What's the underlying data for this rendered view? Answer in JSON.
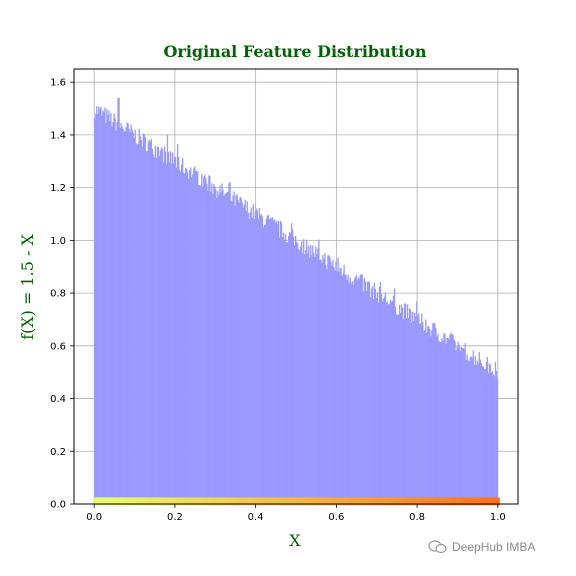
{
  "colors": {
    "hist": "#9999ff",
    "title": "#006400",
    "grid": "#b0b0b0",
    "rug_start": "#e8ff70",
    "rug_end": "#ff7010"
  },
  "chart_data": {
    "type": "bar",
    "title": "Original Feature Distribution",
    "xlabel": "X",
    "ylabel": "f(X) = 1.5 - X",
    "xlim": [
      -0.05,
      1.05
    ],
    "ylim": [
      0.0,
      1.65
    ],
    "xticks": [
      "0.0",
      "0.2",
      "0.4",
      "0.6",
      "0.8",
      "1.0"
    ],
    "yticks": [
      "0.0",
      "0.2",
      "0.4",
      "0.6",
      "0.8",
      "1.0",
      "1.2",
      "1.4",
      "1.6"
    ],
    "grid": true,
    "density_line": {
      "x": [
        0.0,
        1.0
      ],
      "y": [
        1.5,
        0.5
      ]
    },
    "histogram_range": [
      0.0,
      1.0
    ],
    "histogram_peak": {
      "x": 0.06,
      "y": 1.54
    },
    "rug_marks": {
      "range": [
        0.0,
        1.0
      ],
      "y": 0.01
    }
  },
  "watermark": {
    "text": "DeepHub IMBA",
    "icon": "wechat-icon"
  }
}
